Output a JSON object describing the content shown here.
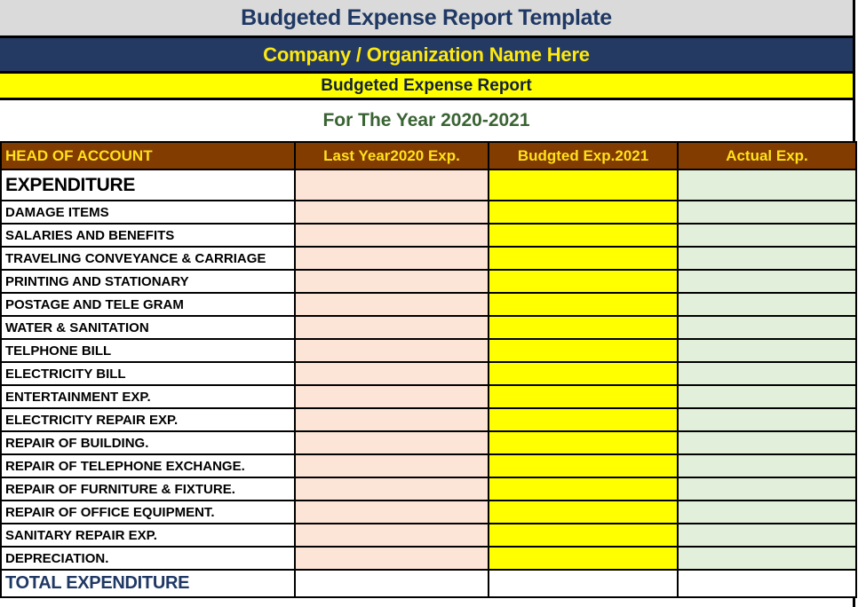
{
  "page_title": "Budgeted Expense Report Template",
  "company_banner": "Company / Organization Name Here",
  "report_banner": "Budgeted Expense Report",
  "year_subtitle": "For The Year 2020-2021",
  "table": {
    "columns": [
      "HEAD OF ACCOUNT",
      "Last Year2020 Exp.",
      "Budgted Exp.2021",
      "Actual Exp."
    ],
    "section_header": "EXPENDITURE",
    "rows": [
      "DAMAGE ITEMS",
      "SALARIES AND BENEFITS",
      "TRAVELING CONVEYANCE & CARRIAGE",
      "PRINTING AND STATIONARY",
      "POSTAGE AND TELE GRAM",
      "WATER & SANITATION",
      "TELPHONE BILL",
      "ELECTRICITY BILL",
      "ENTERTAINMENT EXP.",
      "ELECTRICITY REPAIR EXP.",
      "REPAIR OF BUILDING.",
      "REPAIR OF TELEPHONE EXCHANGE.",
      "REPAIR OF FURNITURE & FIXTURE.",
      "REPAIR OF OFFICE EQUIPMENT.",
      "SANITARY REPAIR EXP.",
      "DEPRECIATION."
    ],
    "cell_values": "",
    "total_row_label": "TOTAL EXPENDITURE"
  },
  "colors": {
    "title_bg": "#DADADA",
    "title_text": "#1F3864",
    "company_bg": "#243A62",
    "company_text": "#FDE910",
    "report_bg": "#FFFF00",
    "report_text": "#132038",
    "year_text": "#3A6333",
    "header_bg": "#833C00",
    "header_text": "#FFE11A",
    "last_year_col_bg": "#FCE4D6",
    "budgeted_col_bg": "#FFFF00",
    "actual_col_bg": "#E2EFDA",
    "total_text": "#1F3864",
    "border": "#000000"
  }
}
